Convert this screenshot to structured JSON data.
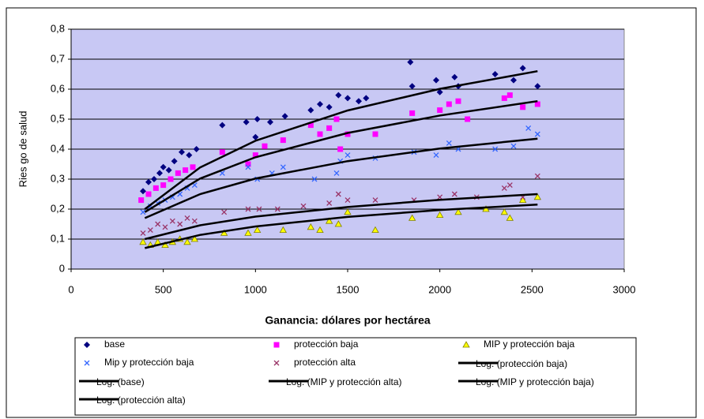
{
  "chart_data": {
    "type": "scatter",
    "x_label": "Ganancia: dólares por hectárea",
    "y_label": "Ries go de salud",
    "xlim": [
      0,
      3000
    ],
    "xticks": [
      0,
      500,
      1000,
      1500,
      2000,
      2500,
      3000
    ],
    "ylim": [
      0,
      0.8
    ],
    "yticks": [
      {
        "value": 0,
        "label": "0"
      },
      {
        "value": 0.1,
        "label": "0,1"
      },
      {
        "value": 0.2,
        "label": "0,2"
      },
      {
        "value": 0.3,
        "label": "0,3"
      },
      {
        "value": 0.4,
        "label": "0,4"
      },
      {
        "value": 0.5,
        "label": "0,5"
      },
      {
        "value": 0.6,
        "label": "0,6"
      },
      {
        "value": 0.7,
        "label": "0,7"
      },
      {
        "value": 0.8,
        "label": "0,8"
      }
    ],
    "grid": true,
    "series": [
      {
        "name": "base",
        "color": "#000080",
        "marker": "diamond",
        "x": [
          390,
          420,
          450,
          480,
          500,
          530,
          560,
          600,
          640,
          680,
          820,
          950,
          1000,
          1010,
          1080,
          1160,
          1300,
          1350,
          1400,
          1450,
          1500,
          1560,
          1600,
          1840,
          1850,
          1980,
          2000,
          2080,
          2100,
          2300,
          2400,
          2450,
          2530
        ],
        "values": [
          0.26,
          0.29,
          0.3,
          0.32,
          0.34,
          0.33,
          0.36,
          0.39,
          0.38,
          0.4,
          0.48,
          0.49,
          0.44,
          0.5,
          0.49,
          0.51,
          0.53,
          0.55,
          0.54,
          0.58,
          0.57,
          0.56,
          0.57,
          0.69,
          0.61,
          0.63,
          0.59,
          0.64,
          0.61,
          0.65,
          0.63,
          0.67,
          0.61
        ]
      },
      {
        "name": "protección baja",
        "color": "#ff00ff",
        "marker": "square",
        "x": [
          380,
          420,
          460,
          500,
          540,
          580,
          620,
          660,
          820,
          960,
          1000,
          1050,
          1150,
          1300,
          1350,
          1400,
          1440,
          1460,
          1500,
          1650,
          1850,
          2000,
          2050,
          2100,
          2150,
          2350,
          2380,
          2450,
          2530
        ],
        "values": [
          0.23,
          0.25,
          0.27,
          0.28,
          0.3,
          0.32,
          0.33,
          0.34,
          0.39,
          0.35,
          0.38,
          0.41,
          0.43,
          0.48,
          0.45,
          0.47,
          0.5,
          0.4,
          0.45,
          0.45,
          0.52,
          0.53,
          0.55,
          0.56,
          0.5,
          0.57,
          0.58,
          0.54,
          0.55
        ]
      },
      {
        "name": "MIP y protección baja",
        "color": "#ffff00",
        "marker": "triangle",
        "x": [
          390,
          430,
          470,
          510,
          550,
          590,
          630,
          670,
          830,
          960,
          1010,
          1150,
          1300,
          1350,
          1400,
          1450,
          1500,
          1650,
          1850,
          2000,
          2100,
          2250,
          2350,
          2380,
          2450,
          2530
        ],
        "values": [
          0.09,
          0.08,
          0.09,
          0.08,
          0.09,
          0.1,
          0.09,
          0.1,
          0.12,
          0.12,
          0.13,
          0.13,
          0.14,
          0.13,
          0.16,
          0.15,
          0.19,
          0.13,
          0.17,
          0.18,
          0.19,
          0.2,
          0.19,
          0.17,
          0.23,
          0.24
        ]
      },
      {
        "name": "Mip y protección baja",
        "color": "#3366ff",
        "marker": "x",
        "x": [
          390,
          430,
          470,
          510,
          550,
          590,
          630,
          670,
          820,
          960,
          1010,
          1090,
          1150,
          1320,
          1440,
          1460,
          1500,
          1650,
          1860,
          1980,
          2050,
          2100,
          2300,
          2400,
          2480,
          2530
        ],
        "values": [
          0.19,
          0.21,
          0.22,
          0.23,
          0.24,
          0.25,
          0.27,
          0.28,
          0.32,
          0.34,
          0.3,
          0.32,
          0.34,
          0.3,
          0.32,
          0.36,
          0.38,
          0.37,
          0.39,
          0.38,
          0.42,
          0.4,
          0.4,
          0.41,
          0.47,
          0.45
        ]
      },
      {
        "name": "protección alta",
        "color": "#993366",
        "marker": "x",
        "x": [
          390,
          430,
          470,
          510,
          550,
          590,
          630,
          670,
          830,
          960,
          1020,
          1120,
          1260,
          1400,
          1450,
          1500,
          1650,
          1860,
          2000,
          2080,
          2200,
          2350,
          2380,
          2450,
          2530
        ],
        "values": [
          0.12,
          0.13,
          0.15,
          0.14,
          0.16,
          0.15,
          0.17,
          0.16,
          0.19,
          0.2,
          0.2,
          0.2,
          0.21,
          0.22,
          0.25,
          0.23,
          0.23,
          0.23,
          0.24,
          0.25,
          0.24,
          0.27,
          0.28,
          0.24,
          0.31
        ]
      },
      {
        "name": "Log. (protección baja)",
        "color": "#000000",
        "marker": "line",
        "x": [
          400,
          700,
          1000,
          1500,
          2000,
          2530
        ],
        "values": [
          0.19,
          0.302,
          0.373,
          0.454,
          0.512,
          0.56
        ]
      },
      {
        "name": "Log. (base)",
        "color": "#000000",
        "marker": "line",
        "x": [
          400,
          700,
          1000,
          1500,
          2000,
          2530
        ],
        "values": [
          0.2,
          0.339,
          0.428,
          0.529,
          0.601,
          0.66
        ]
      },
      {
        "name": "Log. (MIP y protección alta)",
        "color": "#000000",
        "marker": "line",
        "x": [
          400,
          700,
          1000,
          1500,
          2000,
          2530
        ],
        "values": [
          0.07,
          0.114,
          0.142,
          0.174,
          0.197,
          0.215
        ]
      },
      {
        "name": "Log. (MIP y protección baja)",
        "color": "#000000",
        "marker": "line",
        "x": [
          400,
          700,
          1000,
          1500,
          2000,
          2530
        ],
        "values": [
          0.17,
          0.25,
          0.302,
          0.36,
          0.402,
          0.435
        ]
      },
      {
        "name": "Log. (protección alta)",
        "color": "#000000",
        "marker": "line",
        "x": [
          400,
          700,
          1000,
          1500,
          2000,
          2530
        ],
        "values": [
          0.1,
          0.146,
          0.175,
          0.207,
          0.231,
          0.25
        ]
      }
    ]
  }
}
